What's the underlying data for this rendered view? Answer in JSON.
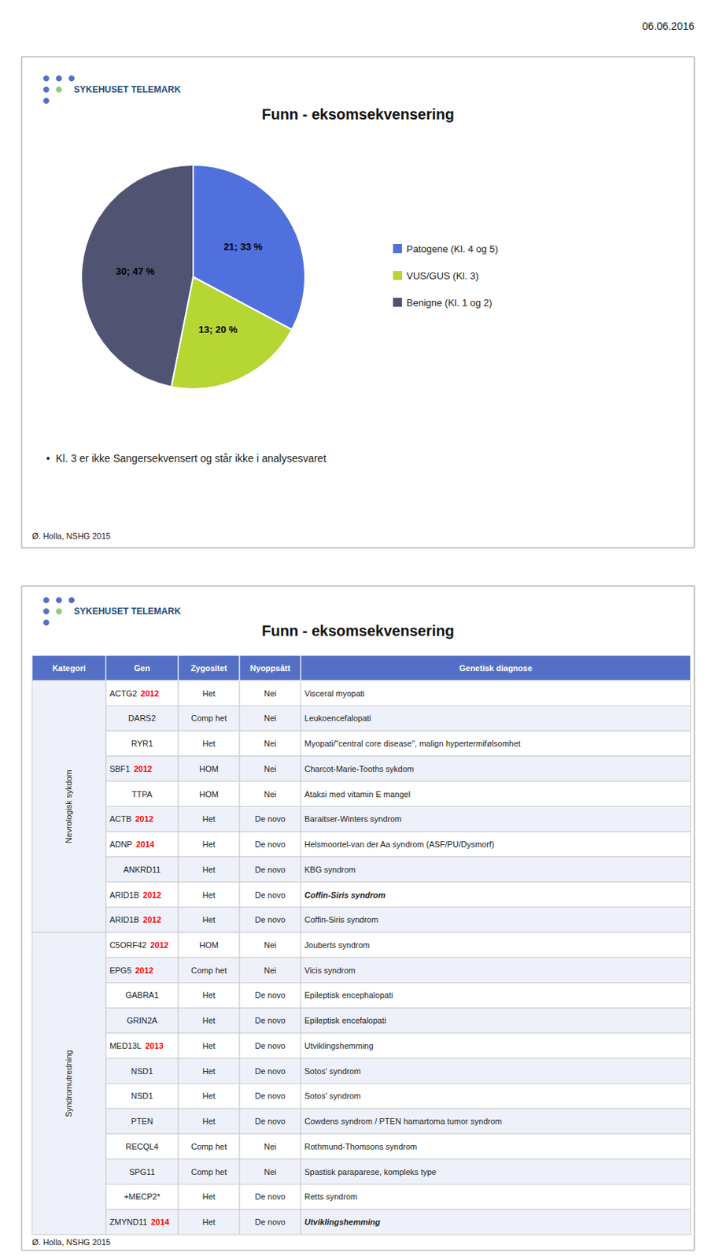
{
  "chart_data": [
    {
      "type": "pie",
      "title": "Funn - eksomsekvensering",
      "categories": [
        "Patogene (Kl. 4 og 5)",
        "VUS/GUS (Kl. 3)",
        "Benigne (Kl. 1 og 2)"
      ],
      "values": [
        21,
        13,
        30
      ],
      "value_labels": [
        "21; 33 %",
        "13; 20 %",
        "30; 47 %"
      ],
      "data_labels": true,
      "legend": "right",
      "annotations": [
        "06.06.2016",
        "SYKEHUSET TELEMARK",
        "•  Kl. 3 er ikke Sangersekvensert og står ikke i analysesvaret",
        "Ø. Holla, NSHG 2015"
      ]
    },
    {
      "type": "table",
      "title": "Funn - eksomsekvensering",
      "columns": [
        "Kategori",
        "Gen",
        "Zygositet",
        "Nyoppsått",
        "Genetisk diagnose"
      ],
      "color": "#FF0000",
      "groups": [
        {
          "category": "Nevrologisk sykdom",
          "rows": [
            {
              "gen": "ACTG2",
              "year": "2012",
              "zyg": "Het",
              "nyopp": "Nei",
              "diag": "Visceral myopati"
            },
            {
              "gen": "DARS2",
              "zyg": "Comp het",
              "nyopp": "Nei",
              "diag": "Leukoencefalopati"
            },
            {
              "gen": "RYR1",
              "zyg": "Het",
              "nyopp": "Nei",
              "diag": "Myopati/\"central core disease\", malign hypertermifølsomhet"
            },
            {
              "gen": "SBF1",
              "year": "2012",
              "zyg": "HOM",
              "nyopp": "Nei",
              "diag": "Charcot-Marie-Tooths sykdom"
            },
            {
              "gen": "TTPA",
              "zyg": "HOM",
              "nyopp": "Nei",
              "diag": "Ataksi med vitamin E mangel"
            },
            {
              "gen": "ACTB",
              "year": "2012",
              "zyg": "Het",
              "nyopp": "De novo",
              "diag": "Baraitser-Winters syndrom"
            },
            {
              "gen": "ADNP",
              "year": "2014",
              "zyg": "Het",
              "nyopp": "De novo",
              "diag": "Helsmoortel-van der Aa syndrom (ASF/PU/Dysmorf)"
            },
            {
              "gen": "ANKRD11",
              "zyg": "Het",
              "nyopp": "De novo",
              "diag": "KBG syndrom"
            },
            {
              "gen": "ARID1B",
              "year": "2012",
              "zyg": "Het",
              "nyopp": "De novo",
              "diag": "Coffin-Siris syndrom",
              "bold": true
            },
            {
              "gen": "ARID1B",
              "year": "2012",
              "zyg": "Het",
              "nyopp": "De novo",
              "diag": "Coffin-Siris syndrom"
            }
          ]
        },
        {
          "category": "Syndromutredning",
          "rows": [
            {
              "gen": "C5ORF42",
              "year": "2012",
              "zyg": "HOM",
              "nyopp": "Nei",
              "diag": "Jouberts syndrom"
            },
            {
              "gen": "EPG5",
              "year": "2012",
              "zyg": "Comp het",
              "nyopp": "Nei",
              "diag": "Vicis syndrom"
            },
            {
              "gen": "GABRA1",
              "zyg": "Het",
              "nyopp": "De novo",
              "diag": "Epileptisk encephalopati"
            },
            {
              "gen": "GRIN2A",
              "zyg": "Het",
              "nyopp": "De novo",
              "diag": "Epileptisk encefalopati"
            },
            {
              "gen": "MED13L",
              "year": "2013",
              "zyg": "Het",
              "nyopp": "De novo",
              "diag": "Utviklingshemming"
            },
            {
              "gen": "NSD1",
              "zyg": "Het",
              "nyopp": "De novo",
              "diag": "Sotos' syndrom"
            },
            {
              "gen": "NSD1",
              "zyg": "Het",
              "nyopp": "De novo",
              "diag": "Sotos' syndrom"
            },
            {
              "gen": "PTEN",
              "zyg": "Het",
              "nyopp": "De novo",
              "diag": "Cowdens syndrom / PTEN hamartoma tumor syndrom"
            },
            {
              "gen": "RECQL4",
              "zyg": "Comp het",
              "nyopp": "Nei",
              "diag": "Rothmund-Thomsons syndrom"
            },
            {
              "gen": "SPG11",
              "zyg": "Comp het",
              "nyopp": "Nei",
              "diag": "Spastisk paraparese, kompleks type"
            },
            {
              "gen": "+MECP2*",
              "zyg": "Het",
              "nyopp": "De novo",
              "diag": "Retts syndrom"
            },
            {
              "gen": "ZMYND11",
              "year": "2014",
              "zyg": "Het",
              "nyopp": "De novo",
              "diag": "Utviklingshemming",
              "bold": true
            }
          ]
        }
      ],
      "annotations": [
        "SYKEHUSET TELEMARK",
        "Ø. Holla, NSHG 2015"
      ]
    }
  ]
}
